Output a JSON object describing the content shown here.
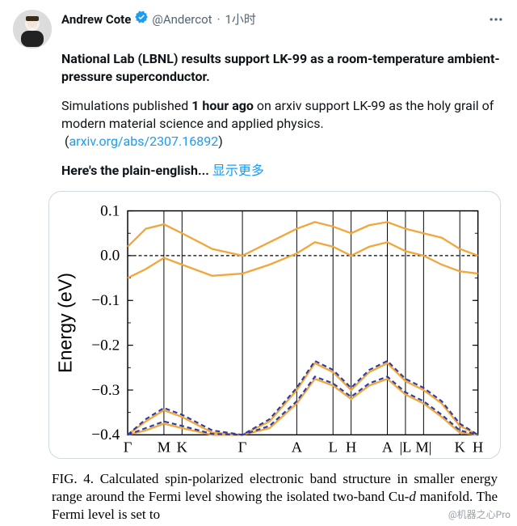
{
  "tweet": {
    "author": {
      "name": "Andrew Cote",
      "handle": "@Andercot",
      "time": "1小时"
    },
    "text": {
      "line1_bold": "National Lab (LBNL) results support LK-99 as a room-temperature ambient-pressure superconductor.",
      "line2_a": "Simulations published ",
      "line2_bold": "1 hour ago",
      "line2_b": " on arxiv support LK-99 as the holy grail of modern material science and applied physics.",
      "link_text": "arxiv.org/abs/2307.16892",
      "line3_bold": "Here's the plain-english...",
      "show_more": " 显示更多"
    }
  },
  "chart": {
    "type": "line",
    "ylabel": "Energy (eV)",
    "ylim": [
      -0.4,
      0.1
    ],
    "yticks": [
      0.1,
      0.0,
      -0.1,
      -0.2,
      -0.3,
      -0.4
    ],
    "ytick_labels": [
      "0.1",
      "0.0",
      "−0.1",
      "−0.2",
      "−0.3",
      "−0.4"
    ],
    "x_segments": [
      0,
      60,
      90,
      190,
      280,
      340,
      370,
      430,
      460,
      490,
      550,
      580
    ],
    "x_labels": [
      "Γ",
      "M",
      "K",
      "Γ",
      "A",
      "L",
      "H",
      "A",
      "|L",
      "M|",
      "K",
      "H"
    ],
    "colors": {
      "solid": "#f2a63c",
      "dash": "#2f3e9e",
      "axis": "#000000",
      "background": "#ffffff"
    },
    "zero_line_y": 0.0,
    "series": {
      "upper_solid_1": [
        [
          0,
          0.02
        ],
        [
          30,
          0.06
        ],
        [
          60,
          0.07
        ],
        [
          90,
          0.05
        ],
        [
          140,
          0.015
        ],
        [
          190,
          0.0
        ],
        [
          235,
          0.03
        ],
        [
          280,
          0.06
        ],
        [
          310,
          0.075
        ],
        [
          340,
          0.065
        ],
        [
          370,
          0.05
        ],
        [
          400,
          0.068
        ],
        [
          430,
          0.075
        ],
        [
          460,
          0.06
        ],
        [
          490,
          0.05
        ],
        [
          520,
          0.04
        ],
        [
          550,
          0.015
        ],
        [
          580,
          0.0
        ]
      ],
      "upper_solid_2": [
        [
          0,
          -0.05
        ],
        [
          30,
          -0.03
        ],
        [
          60,
          -0.005
        ],
        [
          90,
          -0.02
        ],
        [
          140,
          -0.045
        ],
        [
          190,
          -0.04
        ],
        [
          235,
          -0.02
        ],
        [
          280,
          0.005
        ],
        [
          310,
          0.03
        ],
        [
          340,
          0.02
        ],
        [
          370,
          0.0
        ],
        [
          400,
          0.02
        ],
        [
          430,
          0.03
        ],
        [
          460,
          0.01
        ],
        [
          490,
          0.0
        ],
        [
          520,
          -0.02
        ],
        [
          550,
          -0.035
        ],
        [
          580,
          -0.04
        ]
      ],
      "lower_solid_1": [
        [
          0,
          -0.4
        ],
        [
          30,
          -0.37
        ],
        [
          60,
          -0.345
        ],
        [
          90,
          -0.36
        ],
        [
          140,
          -0.395
        ],
        [
          190,
          -0.4
        ],
        [
          235,
          -0.37
        ],
        [
          280,
          -0.3
        ],
        [
          310,
          -0.24
        ],
        [
          340,
          -0.26
        ],
        [
          370,
          -0.3
        ],
        [
          400,
          -0.26
        ],
        [
          430,
          -0.24
        ],
        [
          460,
          -0.28
        ],
        [
          490,
          -0.3
        ],
        [
          520,
          -0.33
        ],
        [
          550,
          -0.38
        ],
        [
          580,
          -0.4
        ]
      ],
      "lower_solid_2": [
        [
          0,
          -0.4
        ],
        [
          30,
          -0.39
        ],
        [
          60,
          -0.375
        ],
        [
          90,
          -0.385
        ],
        [
          140,
          -0.4
        ],
        [
          190,
          -0.4
        ],
        [
          235,
          -0.385
        ],
        [
          280,
          -0.33
        ],
        [
          310,
          -0.275
        ],
        [
          340,
          -0.29
        ],
        [
          370,
          -0.32
        ],
        [
          400,
          -0.29
        ],
        [
          430,
          -0.275
        ],
        [
          460,
          -0.31
        ],
        [
          490,
          -0.33
        ],
        [
          520,
          -0.36
        ],
        [
          550,
          -0.395
        ],
        [
          580,
          -0.4
        ]
      ],
      "lower_dash_1": [
        [
          0,
          -0.4
        ],
        [
          30,
          -0.365
        ],
        [
          60,
          -0.34
        ],
        [
          90,
          -0.355
        ],
        [
          140,
          -0.39
        ],
        [
          190,
          -0.4
        ],
        [
          235,
          -0.365
        ],
        [
          280,
          -0.295
        ],
        [
          310,
          -0.235
        ],
        [
          340,
          -0.255
        ],
        [
          370,
          -0.295
        ],
        [
          400,
          -0.255
        ],
        [
          430,
          -0.235
        ],
        [
          460,
          -0.275
        ],
        [
          490,
          -0.295
        ],
        [
          520,
          -0.325
        ],
        [
          550,
          -0.375
        ],
        [
          580,
          -0.4
        ]
      ],
      "lower_dash_2": [
        [
          0,
          -0.4
        ],
        [
          30,
          -0.385
        ],
        [
          60,
          -0.37
        ],
        [
          90,
          -0.38
        ],
        [
          140,
          -0.398
        ],
        [
          190,
          -0.4
        ],
        [
          235,
          -0.38
        ],
        [
          280,
          -0.325
        ],
        [
          310,
          -0.27
        ],
        [
          340,
          -0.285
        ],
        [
          370,
          -0.315
        ],
        [
          400,
          -0.285
        ],
        [
          430,
          -0.27
        ],
        [
          460,
          -0.305
        ],
        [
          490,
          -0.325
        ],
        [
          520,
          -0.355
        ],
        [
          550,
          -0.39
        ],
        [
          580,
          -0.4
        ]
      ]
    }
  },
  "caption": {
    "prefix": "FIG. 4.  ",
    "text": "Calculated spin-polarized electronic band structure in smaller energy range around the Fermi level showing the isolated two-band Cu-",
    "italic": "d",
    "text2": " manifold.  The Fermi level is set to "
  },
  "watermark": "@机器之心Pro"
}
